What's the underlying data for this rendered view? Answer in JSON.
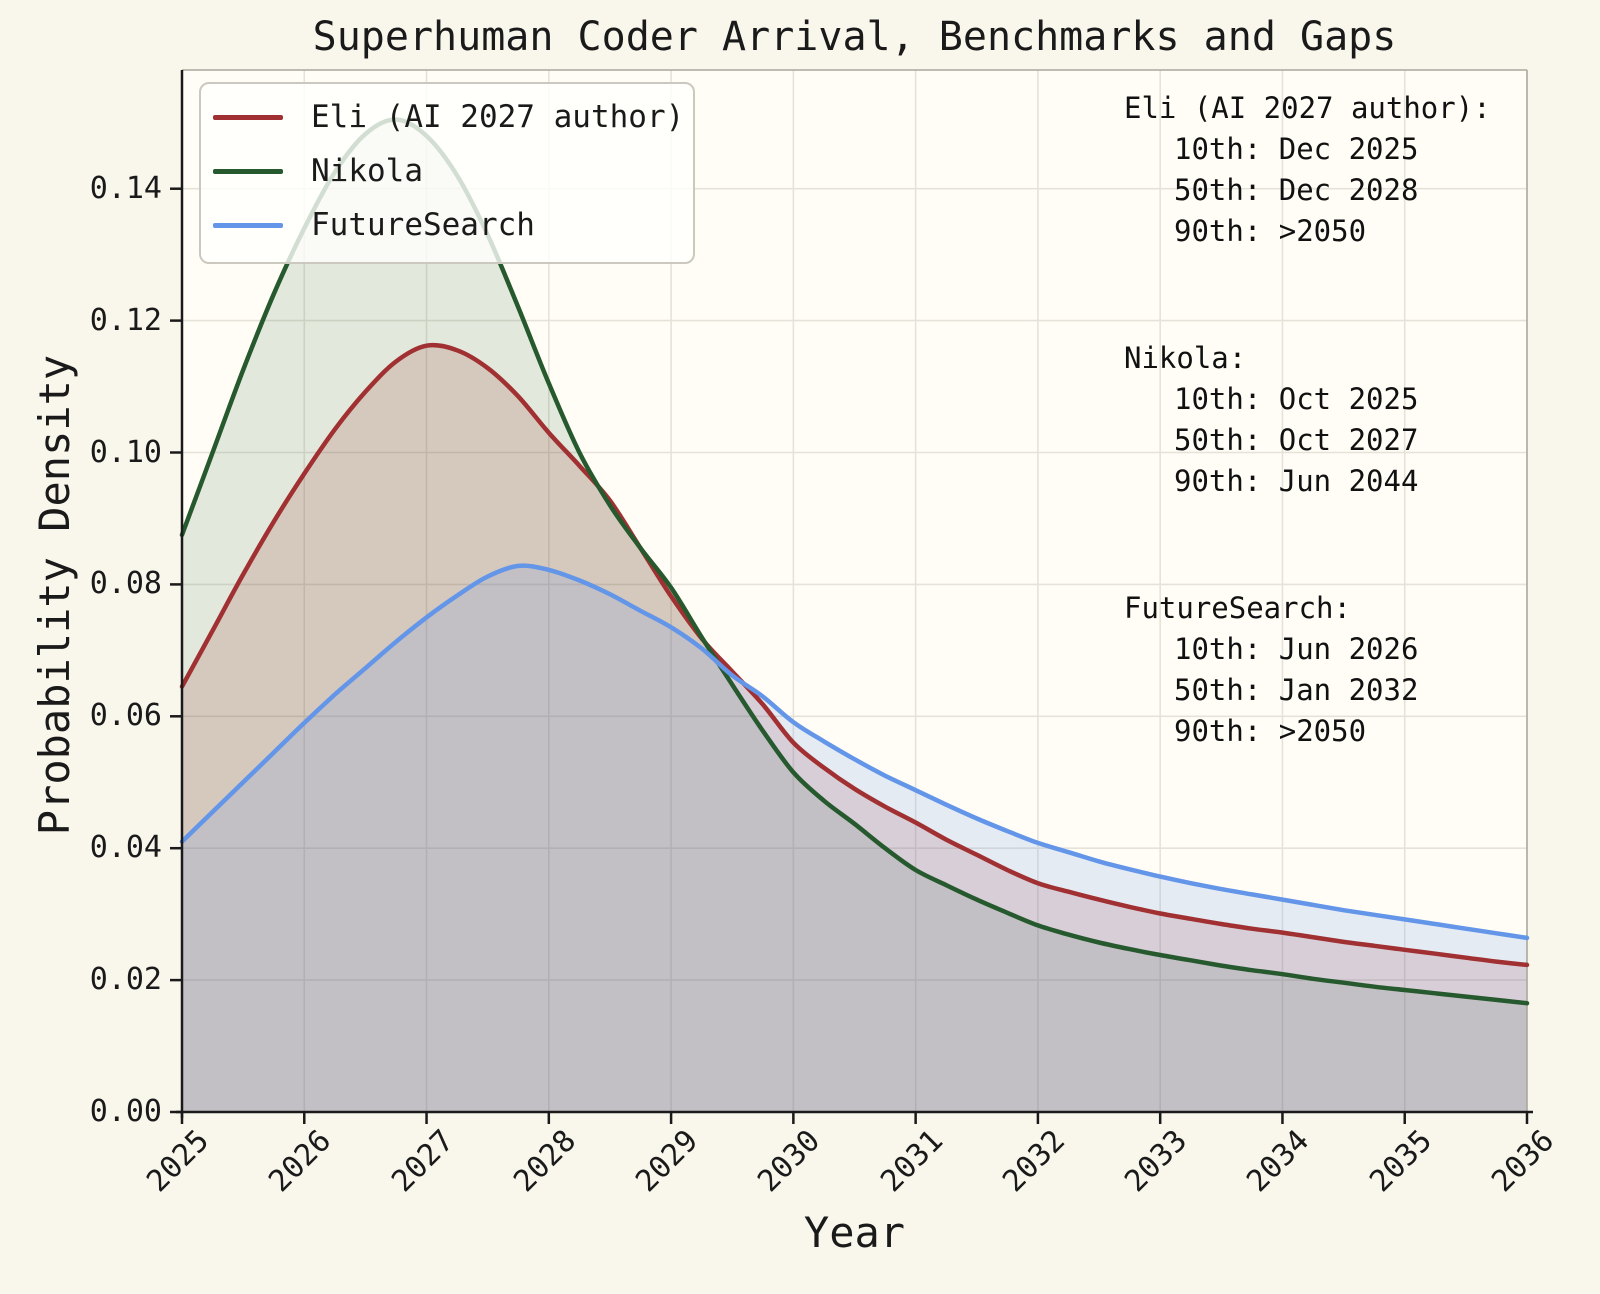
{
  "figure": {
    "background": "#f9f6ec",
    "axes_background": "#fffdf6",
    "gridline_color": "#e5e3d9",
    "spine_color": "#1a1a1a",
    "minor_spine_color": "#aaa79d",
    "text_color": "#1a1a1a"
  },
  "chart_data": {
    "type": "area",
    "title": "Superhuman Coder Arrival, Benchmarks and Gaps",
    "xlabel": "Year",
    "ylabel": "Probability Density",
    "xlim": [
      2025,
      2036
    ],
    "ylim": [
      0,
      0.158
    ],
    "grid": true,
    "legend_position": "upper left",
    "x_ticks": [
      2025,
      2026,
      2027,
      2028,
      2029,
      2030,
      2031,
      2032,
      2033,
      2034,
      2035,
      2036
    ],
    "y_ticks": [
      0.0,
      0.02,
      0.04,
      0.06,
      0.08,
      0.1,
      0.12,
      0.14
    ],
    "x": [
      2025.0,
      2025.25,
      2025.5,
      2025.75,
      2026.0,
      2026.25,
      2026.5,
      2026.75,
      2027.0,
      2027.25,
      2027.5,
      2027.75,
      2028.0,
      2028.25,
      2028.5,
      2028.75,
      2029.0,
      2029.25,
      2029.5,
      2029.75,
      2030.0,
      2030.25,
      2030.5,
      2030.75,
      2031.0,
      2031.25,
      2031.5,
      2031.75,
      2032.0,
      2032.25,
      2032.5,
      2032.75,
      2033.0,
      2033.25,
      2033.5,
      2033.75,
      2034.0,
      2034.25,
      2034.5,
      2034.75,
      2035.0,
      2035.25,
      2035.5,
      2035.75,
      2036.0
    ],
    "series": [
      {
        "key": "eli",
        "name": "Eli (AI 2027 author)",
        "color": "#a03031",
        "fill_opacity": 0.17,
        "y": [
          0.0645,
          0.073,
          0.0815,
          0.0895,
          0.0968,
          0.1035,
          0.1092,
          0.1138,
          0.1162,
          0.1155,
          0.1128,
          0.1085,
          0.103,
          0.098,
          0.0927,
          0.0855,
          0.0782,
          0.0718,
          0.0668,
          0.0618,
          0.056,
          0.0522,
          0.049,
          0.0463,
          0.0439,
          0.0413,
          0.039,
          0.0367,
          0.0347,
          0.0334,
          0.0322,
          0.0311,
          0.0301,
          0.0293,
          0.0285,
          0.0278,
          0.0272,
          0.0265,
          0.0258,
          0.0252,
          0.0246,
          0.024,
          0.0234,
          0.0228,
          0.0223
        ]
      },
      {
        "key": "nikola",
        "name": "Nikola",
        "color": "#27592e",
        "fill_opacity": 0.13,
        "y": [
          0.0875,
          0.1,
          0.1125,
          0.124,
          0.134,
          0.1425,
          0.1483,
          0.1505,
          0.148,
          0.142,
          0.133,
          0.122,
          0.1105,
          0.1,
          0.092,
          0.0855,
          0.0795,
          0.072,
          0.0648,
          0.0578,
          0.0515,
          0.0472,
          0.0437,
          0.04,
          0.0367,
          0.0344,
          0.0322,
          0.0302,
          0.0283,
          0.0269,
          0.0257,
          0.0247,
          0.0238,
          0.023,
          0.0222,
          0.0215,
          0.0209,
          0.0202,
          0.0196,
          0.019,
          0.0185,
          0.018,
          0.0175,
          0.017,
          0.0165
        ]
      },
      {
        "key": "futuresearch",
        "name": "FutureSearch",
        "color": "#6395e8",
        "fill_opacity": 0.17,
        "y": [
          0.041,
          0.0455,
          0.05,
          0.0545,
          0.059,
          0.0633,
          0.0673,
          0.0713,
          0.075,
          0.0783,
          0.0812,
          0.0828,
          0.0822,
          0.0806,
          0.0785,
          0.076,
          0.0735,
          0.0703,
          0.0662,
          0.063,
          0.0591,
          0.0562,
          0.0535,
          0.051,
          0.0488,
          0.0466,
          0.0445,
          0.0426,
          0.0408,
          0.0394,
          0.038,
          0.0368,
          0.0357,
          0.0347,
          0.0338,
          0.033,
          0.0322,
          0.0314,
          0.0306,
          0.0299,
          0.0292,
          0.0285,
          0.0278,
          0.0271,
          0.0264
        ]
      }
    ],
    "annotations": [
      {
        "title": "Eli (AI 2027 author):",
        "lines": [
          "10th: Dec 2025",
          "50th: Dec 2028",
          "90th: >2050"
        ]
      },
      {
        "title": "Nikola:",
        "lines": [
          "10th: Oct 2025",
          "50th: Oct 2027",
          "90th: Jun 2044"
        ]
      },
      {
        "title": "FutureSearch:",
        "lines": [
          "10th: Jun 2026",
          "50th: Jan 2032",
          "90th: >2050"
        ]
      }
    ]
  }
}
